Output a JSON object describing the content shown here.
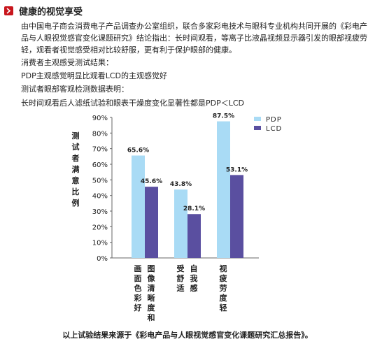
{
  "section": {
    "title": "健康的视觉享受",
    "icon": "chevron-right-icon",
    "accent_color": "#c8161d"
  },
  "intro": "由中国电子商会消费电子产品调查办公室组织，联合多家彩电技术与眼科专业机构共同开展的《彩电产品与人眼视觉感官变化课题研究》结论指出：长时间观看，等离子比液晶视频显示器引发的眼部视疲劳轻，观看者视觉感受相对比较舒服，更有利于保护眼部的健康。",
  "lines": [
    "消费者主观感受测试结果：",
    "PDP主观感觉明显比观看LCD的主观感觉好",
    "测试者眼部客观检测数据表明：",
    "长时间观看后人滤纸试验和眼表干燥度变化显著性都是PDP＜LCD"
  ],
  "chart_data": {
    "type": "bar",
    "ylabel": "测试者满意比例",
    "ylim": [
      0,
      90
    ],
    "yticks": [
      "0%",
      "10%",
      "20%",
      "30%",
      "40%",
      "50%",
      "60%",
      "70%",
      "80%",
      "90%"
    ],
    "categories": [
      [
        "画面色彩好",
        "图像清晰度和"
      ],
      [
        "受舒适",
        "自我感"
      ],
      [
        "视疲劳度轻"
      ]
    ],
    "groups": [
      {
        "PDP": 65.6,
        "LCD": 45.6
      },
      {
        "PDP": 43.8,
        "LCD": 28.1
      },
      {
        "PDP": 87.5,
        "LCD": 53.1
      }
    ],
    "value_labels": [
      {
        "PDP": "65.6%",
        "LCD": "45.6%"
      },
      {
        "PDP": "43.8%",
        "LCD": "28.1%"
      },
      {
        "PDP": "87.5%",
        "LCD": "53.1%"
      }
    ],
    "series": [
      {
        "name": "PDP",
        "color": "#a9dbf5"
      },
      {
        "name": "LCD",
        "color": "#5a4fa0"
      }
    ],
    "grid": false,
    "legend_position": "top-right"
  },
  "source_note": "以上试验结果来源于《彩电产品与人眼视觉感官变化课题研究汇总报告》。"
}
